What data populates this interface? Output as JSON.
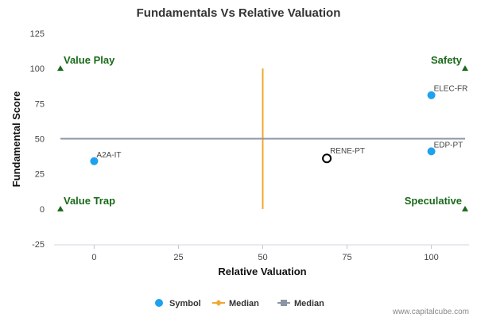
{
  "chart_data": {
    "type": "scatter",
    "title": "Fundamentals Vs Relative Valuation",
    "xlabel": "Relative Valuation",
    "ylabel": "Fundamental Score",
    "xlim": [
      -10,
      110
    ],
    "ylim": [
      -25,
      125
    ],
    "x_ticks": [
      0,
      25,
      50,
      75,
      100
    ],
    "y_ticks": [
      -25,
      0,
      25,
      50,
      75,
      100,
      125
    ],
    "grid": false,
    "series": [
      {
        "name": "Symbol",
        "color": "#1ea1ef",
        "points": [
          {
            "label": "A2A-IT",
            "x": 0,
            "y": 34
          },
          {
            "label": "ELEC-FR",
            "x": 100,
            "y": 81
          },
          {
            "label": "EDP-PT",
            "x": 100,
            "y": 41
          }
        ]
      }
    ],
    "highlight": {
      "label": "RENE-PT",
      "x": 69,
      "y": 36,
      "color": "#000000"
    },
    "median_lines": [
      {
        "name": "Median",
        "orientation": "vertical",
        "x": 50,
        "y_range": [
          0,
          100
        ],
        "color": "#f0a830"
      },
      {
        "name": "Median",
        "orientation": "horizontal",
        "y": 50,
        "x_range": [
          -10,
          110
        ],
        "color": "#8c95a4"
      }
    ],
    "quadrant_labels": [
      {
        "text": "Value Play",
        "x": -10,
        "y": 100,
        "anchor": "start"
      },
      {
        "text": "Safety",
        "x": 110,
        "y": 100,
        "anchor": "end"
      },
      {
        "text": "Value Trap",
        "x": -10,
        "y": 0,
        "anchor": "start"
      },
      {
        "text": "Speculative",
        "x": 110,
        "y": 0,
        "anchor": "end"
      }
    ],
    "marker_color": "#1a6a1a",
    "legend": {
      "position": "bottom-center",
      "items": [
        {
          "label": "Symbol",
          "shape": "circle",
          "color": "#1ea1ef"
        },
        {
          "label": "Median",
          "shape": "line-diamond",
          "color": "#f0a830"
        },
        {
          "label": "Median",
          "shape": "line-square",
          "color": "#8c95a4"
        }
      ]
    },
    "source": "www.capitalcube.com"
  }
}
